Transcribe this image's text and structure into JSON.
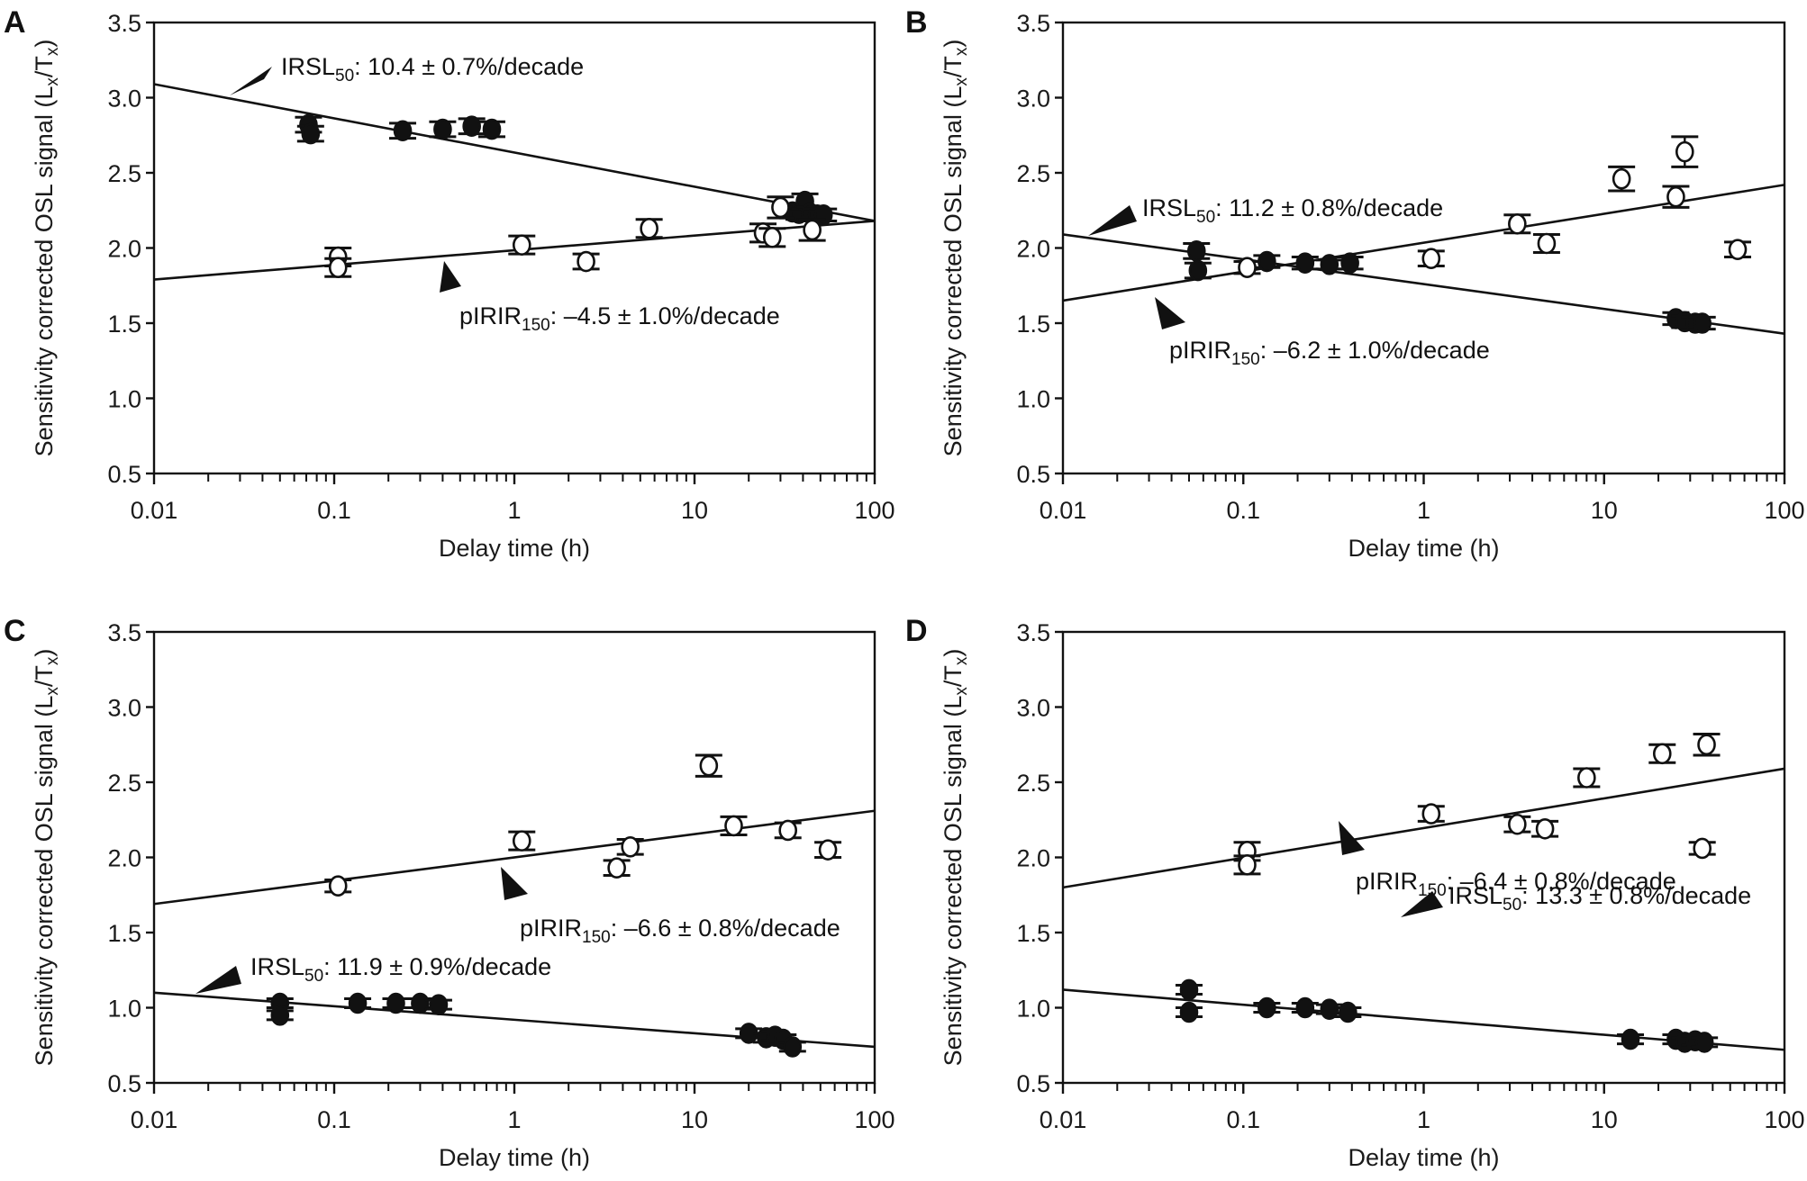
{
  "chart_data": [
    {
      "panel": "A",
      "type": "scatter",
      "xlabel": "Delay time (h)",
      "ylabel": "Sensitivity corrected OSL signal (Lx/Tx)",
      "ylabel_parts": {
        "main": "Sensitivity corrected OSL signal (L",
        "sub1": "x",
        "mid": "/T",
        "sub2": "x",
        "end": ")"
      },
      "xscale": "log",
      "xlim": [
        0.01,
        100
      ],
      "ylim": [
        0.5,
        3.5
      ],
      "xticks": [
        "0.01",
        "0.1",
        "1",
        "10",
        "100"
      ],
      "yticks": [
        "0.5",
        "1.0",
        "1.5",
        "2.0",
        "2.5",
        "3.0",
        "3.5"
      ],
      "series": [
        {
          "name": "IRSL50",
          "marker": "filled-circle",
          "x": [
            0.072,
            0.074,
            0.24,
            0.4,
            0.58,
            0.75,
            35,
            38,
            41,
            44,
            48,
            52
          ],
          "y": [
            2.82,
            2.76,
            2.78,
            2.79,
            2.81,
            2.79,
            2.24,
            2.23,
            2.31,
            2.23,
            2.22,
            2.22
          ],
          "err": [
            0.05,
            0.05,
            0.05,
            0.05,
            0.05,
            0.05,
            0.04,
            0.04,
            0.05,
            0.04,
            0.04,
            0.04
          ],
          "fit": {
            "x": [
              0.01,
              100
            ],
            "y": [
              3.09,
              2.18
            ]
          }
        },
        {
          "name": "pIRIR150",
          "marker": "open-circle",
          "x": [
            0.105,
            0.105,
            1.1,
            2.5,
            5.6,
            24,
            27,
            30,
            45
          ],
          "y": [
            1.94,
            1.87,
            2.02,
            1.91,
            2.13,
            2.1,
            2.07,
            2.27,
            2.12
          ],
          "err": [
            0.06,
            0.06,
            0.06,
            0.05,
            0.06,
            0.06,
            0.06,
            0.07,
            0.07
          ],
          "fit": {
            "x": [
              0.01,
              100
            ],
            "y": [
              1.79,
              2.18
            ]
          }
        }
      ],
      "annotations": [
        {
          "series": "IRSL50",
          "label": "IRSL",
          "sub": "50",
          "text": ": 10.4 ± 0.7%/decade"
        },
        {
          "series": "pIRIR150",
          "label": "pIRIR",
          "sub": "150",
          "text": ": –4.5 ± 1.0%/decade"
        }
      ]
    },
    {
      "panel": "B",
      "type": "scatter",
      "xlabel": "Delay time (h)",
      "ylabel": "Sensitivity corrected OSL signal (Lx/Tx)",
      "ylabel_parts": {
        "main": "Sensitivity corrected OSL signal (L",
        "sub1": "x",
        "mid": "/T",
        "sub2": "x",
        "end": ")"
      },
      "xscale": "log",
      "xlim": [
        0.01,
        100
      ],
      "ylim": [
        0.5,
        3.5
      ],
      "xticks": [
        "0.01",
        "0.1",
        "1",
        "10",
        "100"
      ],
      "yticks": [
        "0.5",
        "1.0",
        "1.5",
        "2.0",
        "2.5",
        "3.0",
        "3.5"
      ],
      "series": [
        {
          "name": "IRSL50",
          "marker": "filled-circle",
          "x": [
            0.055,
            0.056,
            0.135,
            0.22,
            0.3,
            0.39,
            25,
            28,
            32,
            35
          ],
          "y": [
            1.98,
            1.85,
            1.91,
            1.9,
            1.89,
            1.9,
            1.53,
            1.51,
            1.5,
            1.5
          ],
          "err": [
            0.05,
            0.05,
            0.04,
            0.04,
            0.03,
            0.04,
            0.04,
            0.04,
            0.04,
            0.04
          ],
          "fit": {
            "x": [
              0.01,
              100
            ],
            "y": [
              2.09,
              1.43
            ]
          }
        },
        {
          "name": "pIRIR150",
          "marker": "open-circle",
          "x": [
            0.105,
            1.1,
            3.3,
            4.8,
            12.5,
            25,
            28,
            55
          ],
          "y": [
            1.87,
            1.93,
            2.16,
            2.03,
            2.46,
            2.34,
            2.64,
            1.99
          ],
          "err": [
            0.04,
            0.05,
            0.06,
            0.06,
            0.08,
            0.07,
            0.1,
            0.05
          ],
          "fit": {
            "x": [
              0.01,
              100
            ],
            "y": [
              1.65,
              2.42
            ]
          }
        }
      ],
      "annotations": [
        {
          "series": "IRSL50",
          "label": "IRSL",
          "sub": "50",
          "text": ": 11.2 ± 0.8%/decade"
        },
        {
          "series": "pIRIR150",
          "label": "pIRIR",
          "sub": "150",
          "text": ": –6.2 ± 1.0%/decade"
        }
      ]
    },
    {
      "panel": "C",
      "type": "scatter",
      "xlabel": "Delay time (h)",
      "ylabel": "Sensitivity corrected OSL signal (Lx/Tx)",
      "ylabel_parts": {
        "main": "Sensitivity corrected OSL signal (L",
        "sub1": "x",
        "mid": "/T",
        "sub2": "x",
        "end": ")"
      },
      "xscale": "log",
      "xlim": [
        0.01,
        100
      ],
      "ylim": [
        0.5,
        3.5
      ],
      "xticks": [
        "0.01",
        "0.1",
        "1",
        "10",
        "100"
      ],
      "yticks": [
        "0.5",
        "1.0",
        "1.5",
        "2.0",
        "2.5",
        "3.0",
        "3.5"
      ],
      "series": [
        {
          "name": "IRSL50",
          "marker": "filled-circle",
          "x": [
            0.05,
            0.05,
            0.135,
            0.22,
            0.3,
            0.38,
            20,
            25,
            28,
            31,
            35
          ],
          "y": [
            1.03,
            0.95,
            1.03,
            1.03,
            1.03,
            1.02,
            0.83,
            0.8,
            0.81,
            0.79,
            0.74
          ],
          "err": [
            0.03,
            0.03,
            0.03,
            0.03,
            0.03,
            0.03,
            0.03,
            0.03,
            0.03,
            0.03,
            0.03
          ],
          "fit": {
            "x": [
              0.01,
              100
            ],
            "y": [
              1.1,
              0.74
            ]
          }
        },
        {
          "name": "pIRIR150",
          "marker": "open-circle",
          "x": [
            0.105,
            1.1,
            3.7,
            4.4,
            12,
            16.5,
            33,
            55
          ],
          "y": [
            1.81,
            2.11,
            1.93,
            2.07,
            2.61,
            2.21,
            2.18,
            2.05
          ],
          "err": [
            0.04,
            0.06,
            0.05,
            0.05,
            0.07,
            0.06,
            0.05,
            0.05
          ],
          "fit": {
            "x": [
              0.01,
              100
            ],
            "y": [
              1.69,
              2.31
            ]
          }
        }
      ],
      "annotations": [
        {
          "series": "IRSL50",
          "label": "IRSL",
          "sub": "50",
          "text": ": 11.9 ± 0.9%/decade"
        },
        {
          "series": "pIRIR150",
          "label": "pIRIR",
          "sub": "150",
          "text": ": –6.6 ± 0.8%/decade"
        }
      ]
    },
    {
      "panel": "D",
      "type": "scatter",
      "xlabel": "Delay time (h)",
      "ylabel": "Sensitivity corrected OSL signal (Lx/Tx)",
      "ylabel_parts": {
        "main": "Sensitivity corrected OSL signal (L",
        "sub1": "x",
        "mid": "/T",
        "sub2": "x",
        "end": ")"
      },
      "xscale": "log",
      "xlim": [
        0.01,
        100
      ],
      "ylim": [
        0.5,
        3.5
      ],
      "xticks": [
        "0.01",
        "0.1",
        "1",
        "10",
        "100"
      ],
      "yticks": [
        "0.5",
        "1.0",
        "1.5",
        "2.0",
        "2.5",
        "3.0",
        "3.5"
      ],
      "series": [
        {
          "name": "IRSL50",
          "marker": "filled-circle",
          "x": [
            0.05,
            0.05,
            0.135,
            0.22,
            0.3,
            0.38,
            14,
            25,
            28,
            32,
            36
          ],
          "y": [
            1.12,
            0.97,
            1.0,
            1.0,
            0.99,
            0.97,
            0.79,
            0.79,
            0.77,
            0.78,
            0.77
          ],
          "err": [
            0.03,
            0.03,
            0.03,
            0.03,
            0.03,
            0.03,
            0.03,
            0.03,
            0.03,
            0.03,
            0.03
          ],
          "fit": {
            "x": [
              0.01,
              100
            ],
            "y": [
              1.12,
              0.72
            ]
          }
        },
        {
          "name": "pIRIR150",
          "marker": "open-circle",
          "x": [
            0.105,
            0.105,
            1.1,
            3.3,
            4.7,
            8,
            21,
            37,
            35
          ],
          "y": [
            2.04,
            1.95,
            2.29,
            2.22,
            2.19,
            2.53,
            2.69,
            2.75,
            2.06
          ],
          "err": [
            0.06,
            0.06,
            0.05,
            0.05,
            0.05,
            0.06,
            0.06,
            0.07,
            0.04
          ],
          "fit": {
            "x": [
              0.01,
              100
            ],
            "y": [
              1.8,
              2.59
            ]
          }
        }
      ],
      "annotations": [
        {
          "series": "IRSL50",
          "label": "IRSL",
          "sub": "50",
          "text": ": 13.3 ± 0.8%/decade"
        },
        {
          "series": "pIRIR150",
          "label": "pIRIR",
          "sub": "150",
          "text": ": –6.4 ± 0.8%/decade"
        }
      ]
    }
  ]
}
